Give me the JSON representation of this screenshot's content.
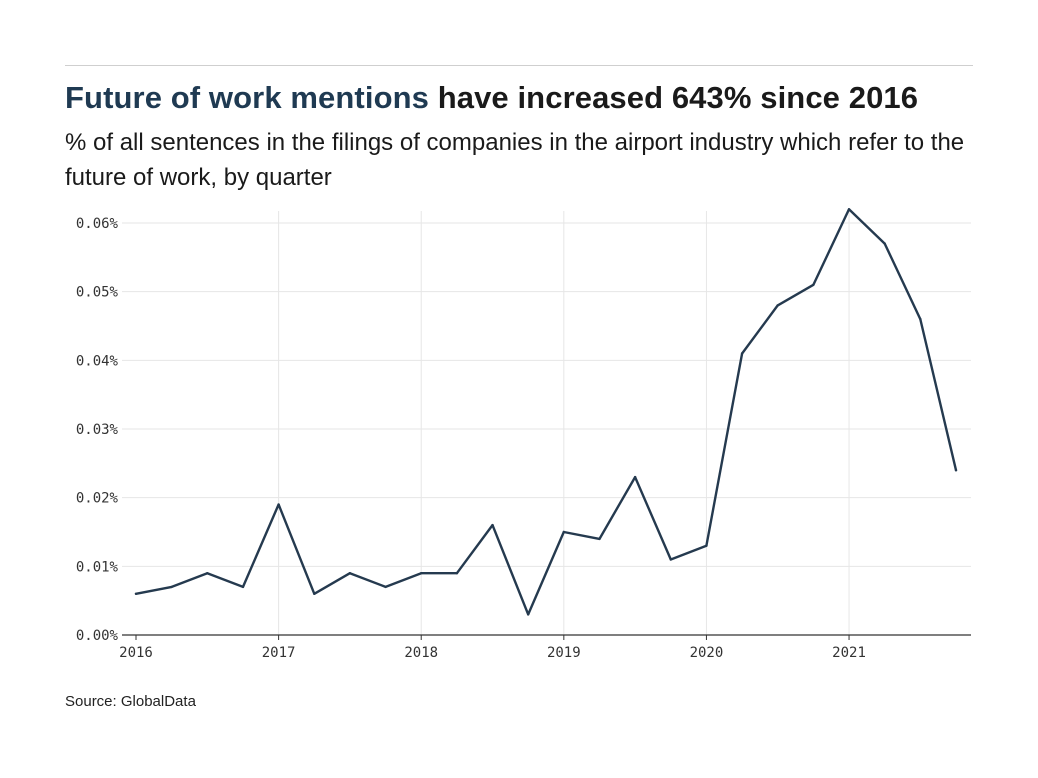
{
  "header": {
    "title_highlight": "Future of work mentions",
    "title_rest": "have increased 643% since 2016",
    "subtitle": "% of all sentences in the filings of companies in the airport industry which refer to the future of work, by quarter"
  },
  "footer": {
    "source": "Source: GlobalData"
  },
  "colors": {
    "line": "#253a4f",
    "title_highlight": "#1f3a52",
    "grid": "#e6e6e6",
    "axis": "#333333"
  },
  "chart_data": {
    "type": "line",
    "title": "Future of work mentions have increased 643% since 2016",
    "subtitle": "% of all sentences in the filings of companies in the airport industry which refer to the future of work, by quarter",
    "xlabel": "",
    "ylabel": "",
    "x_ticks": [
      "2016",
      "2017",
      "2018",
      "2019",
      "2020",
      "2021"
    ],
    "y_ticks": [
      "0.00%",
      "0.01%",
      "0.02%",
      "0.03%",
      "0.04%",
      "0.05%",
      "0.06%"
    ],
    "ylim": [
      0,
      0.06
    ],
    "grid": true,
    "x": [
      "2016 Q1",
      "2016 Q2",
      "2016 Q3",
      "2016 Q4",
      "2017 Q1",
      "2017 Q2",
      "2017 Q3",
      "2017 Q4",
      "2018 Q1",
      "2018 Q2",
      "2018 Q3",
      "2018 Q4",
      "2019 Q1",
      "2019 Q2",
      "2019 Q3",
      "2019 Q4",
      "2020 Q1",
      "2020 Q2",
      "2020 Q3",
      "2020 Q4",
      "2021 Q1",
      "2021 Q2",
      "2021 Q3",
      "2021 Q4"
    ],
    "series": [
      {
        "values": [
          0.006,
          0.007,
          0.009,
          0.007,
          0.019,
          0.006,
          0.009,
          0.007,
          0.009,
          0.009,
          0.016,
          0.003,
          0.015,
          0.014,
          0.023,
          0.011,
          0.013,
          0.041,
          0.048,
          0.051,
          0.062,
          0.057,
          0.046,
          0.024
        ]
      }
    ]
  }
}
